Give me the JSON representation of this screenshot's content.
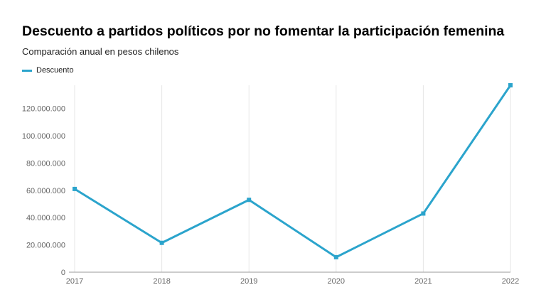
{
  "chart_data": {
    "type": "line",
    "title": "Descuento a partidos políticos por no fomentar la participación femenina",
    "subtitle": "Comparación anual en pesos chilenos",
    "x": [
      "2017",
      "2018",
      "2019",
      "2020",
      "2021",
      "2022"
    ],
    "series": [
      {
        "name": "Descuento",
        "values": [
          61000000,
          21500000,
          53000000,
          11000000,
          43000000,
          137000000
        ]
      }
    ],
    "ylim": [
      0,
      137000000
    ],
    "yticks": [
      0,
      20000000,
      40000000,
      60000000,
      80000000,
      100000000,
      120000000
    ],
    "ytick_labels": [
      "0",
      "20.000.000",
      "40.000.000",
      "60.000.000",
      "80.000.000",
      "100.000.000",
      "120.000.000"
    ],
    "legend": "top-left",
    "grid": "vertical",
    "colors": {
      "line": "#2ba4cc",
      "grid": "#e6e6e6",
      "axis": "#999999",
      "tick_text": "#666666"
    }
  }
}
